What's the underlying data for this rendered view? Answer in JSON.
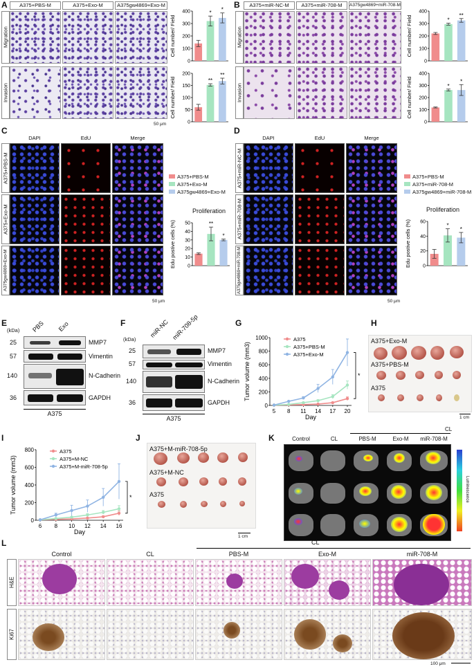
{
  "panels": {
    "A": {
      "label": "A",
      "headers": [
        "A375+PBS-M",
        "A375+Exo-M",
        "A375gw4869+Exo-M"
      ],
      "rows": [
        "Migration",
        "Invasion"
      ],
      "scale": "50 μm",
      "ylabel": "Cell number/ Field"
    },
    "B": {
      "label": "B",
      "headers": [
        "A375+miR-NC-M",
        "A375+miR-708-M",
        "A375gw4869+miR-708-M"
      ],
      "rows": [
        "Migration",
        "Invasion"
      ],
      "ylabel": "Cell number/ Field"
    },
    "C": {
      "label": "C",
      "headers": [
        "DAPI",
        "EdU",
        "Merge"
      ],
      "rows": [
        "A375+PBS-M",
        "A375+Exo-M",
        "A375gw4869+Exo-M"
      ],
      "scale": "50 μm",
      "legend": [
        "A375+PBS-M",
        "A375+Exo-M",
        "A375gw4869+Exo-M"
      ],
      "title": "Proliferation",
      "ylabel": "Edu postive cells (%)"
    },
    "D": {
      "label": "D",
      "headers": [
        "DAPI",
        "EdU",
        "Merge"
      ],
      "rows": [
        "A375+miR-NC-M",
        "A375+miR-708-M",
        "A375gw4869+miR-708-M"
      ],
      "scale": "50 μm",
      "legend": [
        "A375+PBS-M",
        "A375+miR-708-M",
        "A375gw4869+miR-708-M"
      ],
      "title": "Proliferation",
      "ylabel": "Edu postive cells (%)"
    },
    "E": {
      "label": "E",
      "kda": "(kDa)",
      "lanes": [
        "PBS",
        "Exo"
      ],
      "markers": [
        "25",
        "57",
        "140",
        "36"
      ],
      "proteins": [
        "MMP7",
        "Vimentin",
        "N-Cadherin",
        "GAPDH"
      ],
      "cell": "A375"
    },
    "F": {
      "label": "F",
      "kda": "(kDa)",
      "lanes": [
        "miR-NC",
        "miR-708-5p"
      ],
      "markers": [
        "25",
        "57",
        "140",
        "36"
      ],
      "proteins": [
        "MMP7",
        "Vimentin",
        "N-Cadherin",
        "GAPDH"
      ],
      "cell": "A375"
    },
    "G": {
      "label": "G"
    },
    "H": {
      "label": "H",
      "rows": [
        "A375+Exo-M",
        "A375+PBS-M",
        "A375"
      ],
      "scale": "1 cm"
    },
    "I": {
      "label": "I"
    },
    "J": {
      "label": "J",
      "rows": [
        "A375+M-miR-708-5p",
        "A375+M-NC",
        "A375"
      ],
      "scale": "1 cm"
    },
    "K": {
      "label": "K",
      "columns": [
        "Control",
        "CL",
        "PBS-M",
        "Exo-M",
        "miR-708-M"
      ],
      "group": "CL",
      "colorbar": "Luminescence"
    },
    "L": {
      "label": "L",
      "columns": [
        "Control",
        "CL",
        "PBS-M",
        "Exo-M",
        "miR-708-M"
      ],
      "group": "CL",
      "rows": [
        "H&E",
        "Ki67"
      ],
      "scale": "100 μm"
    }
  },
  "chart_data": [
    {
      "id": "A-migration",
      "type": "bar",
      "categories": [
        "A375+PBS-M",
        "A375+Exo-M",
        "A375gw4869+Exo-M"
      ],
      "values": [
        140,
        320,
        345
      ],
      "errors": [
        25,
        40,
        40
      ],
      "sig": [
        "",
        "*",
        "*"
      ],
      "ylim": [
        0,
        400
      ],
      "yticks": [
        0,
        100,
        200,
        300,
        400
      ],
      "ylabel": "Cell number/ Field",
      "colors": [
        "#f08c8c",
        "#a6e5c0",
        "#b5ccec"
      ]
    },
    {
      "id": "A-invasion",
      "type": "bar",
      "categories": [
        "A375+PBS-M",
        "A375+Exo-M",
        "A375gw4869+Exo-M"
      ],
      "values": [
        60,
        152,
        168
      ],
      "errors": [
        12,
        5,
        12
      ],
      "sig": [
        "",
        "**",
        "**"
      ],
      "ylim": [
        0,
        200
      ],
      "yticks": [
        0,
        50,
        100,
        150,
        200
      ],
      "ylabel": "Cell number/ Field",
      "colors": [
        "#f08c8c",
        "#a6e5c0",
        "#b5ccec"
      ]
    },
    {
      "id": "B-migration",
      "type": "bar",
      "categories": [
        "A375+miR-NC-M",
        "A375+miR-708-M",
        "A375gw4869+miR-708-M"
      ],
      "values": [
        220,
        295,
        325
      ],
      "errors": [
        8,
        8,
        15
      ],
      "sig": [
        "",
        "*",
        "**"
      ],
      "ylim": [
        0,
        400
      ],
      "yticks": [
        0,
        100,
        200,
        300,
        400
      ],
      "ylabel": "Cell number/ Field",
      "colors": [
        "#f08c8c",
        "#a6e5c0",
        "#b5ccec"
      ]
    },
    {
      "id": "B-invasion",
      "type": "bar",
      "categories": [
        "A375+miR-NC-M",
        "A375+miR-708-M",
        "A375gw4869+miR-708-M"
      ],
      "values": [
        118,
        262,
        262
      ],
      "errors": [
        4,
        8,
        45
      ],
      "sig": [
        "",
        "*",
        "*"
      ],
      "ylim": [
        0,
        400
      ],
      "yticks": [
        0,
        100,
        200,
        300,
        400
      ],
      "ylabel": "Cell number/ Field",
      "colors": [
        "#f08c8c",
        "#a6e5c0",
        "#b5ccec"
      ]
    },
    {
      "id": "C-proliferation",
      "type": "bar",
      "categories": [
        "A375+PBS-M",
        "A375+Exo-M",
        "A375gw4869+Exo-M"
      ],
      "values": [
        14,
        37,
        30
      ],
      "errors": [
        1,
        8,
        1
      ],
      "sig": [
        "",
        "**",
        "*"
      ],
      "ylim": [
        0,
        50
      ],
      "yticks": [
        0,
        10,
        20,
        30,
        40,
        50
      ],
      "ylabel": "Edu postive cells (%)",
      "colors": [
        "#f08c8c",
        "#a6e5c0",
        "#b5ccec"
      ]
    },
    {
      "id": "D-proliferation",
      "type": "bar",
      "categories": [
        "A375+PBS-M",
        "A375+miR-708-M",
        "A375gw4869+miR-708-M"
      ],
      "values": [
        16,
        41,
        38
      ],
      "errors": [
        6,
        9,
        7
      ],
      "sig": [
        "",
        "*",
        "*"
      ],
      "ylim": [
        0,
        60
      ],
      "yticks": [
        0,
        20,
        40,
        60
      ],
      "ylabel": "Edu postive cells (%)",
      "colors": [
        "#f08c8c",
        "#a6e5c0",
        "#b5ccec"
      ]
    },
    {
      "id": "G-tumor",
      "type": "line",
      "x": [
        5,
        8,
        11,
        14,
        17,
        20
      ],
      "xlabel": "Day",
      "ylabel": "Tumor volume (mm3)",
      "ylim": [
        0,
        1000
      ],
      "yticks": [
        0,
        200,
        400,
        600,
        800,
        1000
      ],
      "sig": "*",
      "series": [
        {
          "name": "A375",
          "color": "#f08c8c",
          "values": [
            5,
            8,
            12,
            20,
            40,
            100
          ],
          "errors": [
            0,
            0,
            0,
            0,
            10,
            25
          ]
        },
        {
          "name": "A375+PBS-M",
          "color": "#a6e5c0",
          "values": [
            5,
            15,
            40,
            70,
            130,
            300
          ],
          "errors": [
            0,
            0,
            8,
            15,
            30,
            60
          ]
        },
        {
          "name": "A375+Exo-M",
          "color": "#8fb4e3",
          "values": [
            5,
            60,
            110,
            250,
            420,
            780
          ],
          "errors": [
            0,
            10,
            20,
            60,
            110,
            200
          ]
        }
      ]
    },
    {
      "id": "I-tumor",
      "type": "line",
      "x": [
        6,
        8,
        10,
        12,
        14,
        16
      ],
      "xlabel": "Day",
      "ylabel": "Tumor volume (mm3)",
      "ylim": [
        0,
        800
      ],
      "yticks": [
        0,
        200,
        400,
        600,
        800
      ],
      "sig": "*",
      "series": [
        {
          "name": "A375",
          "color": "#f08c8c",
          "values": [
            5,
            10,
            15,
            25,
            40,
            80
          ],
          "errors": [
            0,
            0,
            0,
            5,
            10,
            25
          ]
        },
        {
          "name": "A375+M-NC",
          "color": "#a6e5c0",
          "values": [
            5,
            20,
            35,
            60,
            90,
            130
          ],
          "errors": [
            0,
            5,
            8,
            15,
            20,
            35
          ]
        },
        {
          "name": "A375+M-miR-708-5p",
          "color": "#8fb4e3",
          "values": [
            5,
            60,
            110,
            160,
            260,
            440
          ],
          "errors": [
            0,
            20,
            60,
            70,
            100,
            200
          ]
        }
      ]
    }
  ]
}
